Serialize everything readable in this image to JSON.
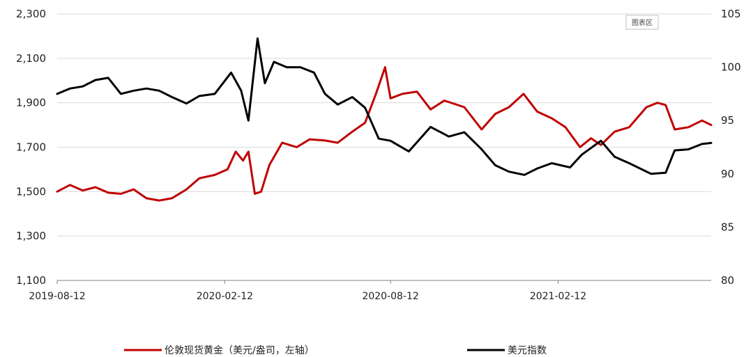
{
  "chart_area_label": "图表区",
  "colors": {
    "gold": "#c00000",
    "dxy": "#000000",
    "grid": "#d9d9d9",
    "axis": "#808080"
  },
  "chart_data": {
    "type": "line",
    "x_ticks": [
      "2019-08-12",
      "2020-02-12",
      "2020-08-12",
      "2021-02-12"
    ],
    "x_range": [
      "2019-08-12",
      "2021-07-30"
    ],
    "left_axis": {
      "ticks": [
        "1,100",
        "1,300",
        "1,500",
        "1,700",
        "1,900",
        "2,100",
        "2,300"
      ],
      "ylim": [
        1100,
        2300
      ]
    },
    "right_axis": {
      "ticks": [
        "80",
        "85",
        "90",
        "95",
        "100",
        "105"
      ],
      "ylim": [
        80,
        105
      ]
    },
    "grid": true,
    "legend_position": "bottom",
    "series": [
      {
        "name": "伦敦现货黄金（美元/盎司，左轴）",
        "axis": "left",
        "points": [
          [
            "2019-08-12",
            1500
          ],
          [
            "2019-08-26",
            1530
          ],
          [
            "2019-09-09",
            1505
          ],
          [
            "2019-09-23",
            1520
          ],
          [
            "2019-10-07",
            1495
          ],
          [
            "2019-10-21",
            1490
          ],
          [
            "2019-11-04",
            1510
          ],
          [
            "2019-11-18",
            1470
          ],
          [
            "2019-12-02",
            1460
          ],
          [
            "2019-12-16",
            1470
          ],
          [
            "2020-01-01",
            1510
          ],
          [
            "2020-01-15",
            1560
          ],
          [
            "2020-02-01",
            1575
          ],
          [
            "2020-02-15",
            1600
          ],
          [
            "2020-02-24",
            1680
          ],
          [
            "2020-03-03",
            1640
          ],
          [
            "2020-03-09",
            1680
          ],
          [
            "2020-03-16",
            1490
          ],
          [
            "2020-03-23",
            1500
          ],
          [
            "2020-04-01",
            1620
          ],
          [
            "2020-04-15",
            1720
          ],
          [
            "2020-05-01",
            1700
          ],
          [
            "2020-05-15",
            1735
          ],
          [
            "2020-06-01",
            1730
          ],
          [
            "2020-06-15",
            1720
          ],
          [
            "2020-07-01",
            1770
          ],
          [
            "2020-07-15",
            1810
          ],
          [
            "2020-07-27",
            1940
          ],
          [
            "2020-08-06",
            2060
          ],
          [
            "2020-08-12",
            1920
          ],
          [
            "2020-08-25",
            1940
          ],
          [
            "2020-09-10",
            1950
          ],
          [
            "2020-09-25",
            1870
          ],
          [
            "2020-10-10",
            1910
          ],
          [
            "2020-11-01",
            1880
          ],
          [
            "2020-11-20",
            1780
          ],
          [
            "2020-12-05",
            1850
          ],
          [
            "2020-12-20",
            1880
          ],
          [
            "2021-01-05",
            1940
          ],
          [
            "2021-01-20",
            1860
          ],
          [
            "2021-02-05",
            1830
          ],
          [
            "2021-02-20",
            1790
          ],
          [
            "2021-03-08",
            1700
          ],
          [
            "2021-03-20",
            1740
          ],
          [
            "2021-03-31",
            1710
          ],
          [
            "2021-04-15",
            1770
          ],
          [
            "2021-05-01",
            1790
          ],
          [
            "2021-05-20",
            1880
          ],
          [
            "2021-06-01",
            1900
          ],
          [
            "2021-06-10",
            1890
          ],
          [
            "2021-06-20",
            1780
          ],
          [
            "2021-07-05",
            1790
          ],
          [
            "2021-07-20",
            1820
          ],
          [
            "2021-07-30",
            1800
          ]
        ]
      },
      {
        "name": "美元指数",
        "axis": "right",
        "points": [
          [
            "2019-08-12",
            97.5
          ],
          [
            "2019-08-26",
            98.0
          ],
          [
            "2019-09-09",
            98.2
          ],
          [
            "2019-09-23",
            98.8
          ],
          [
            "2019-10-07",
            99.0
          ],
          [
            "2019-10-21",
            97.5
          ],
          [
            "2019-11-04",
            97.8
          ],
          [
            "2019-11-18",
            98.0
          ],
          [
            "2019-12-02",
            97.8
          ],
          [
            "2019-12-16",
            97.2
          ],
          [
            "2020-01-01",
            96.6
          ],
          [
            "2020-01-15",
            97.3
          ],
          [
            "2020-02-01",
            97.5
          ],
          [
            "2020-02-19",
            99.5
          ],
          [
            "2020-03-01",
            97.8
          ],
          [
            "2020-03-09",
            95.0
          ],
          [
            "2020-03-19",
            102.7
          ],
          [
            "2020-03-27",
            98.5
          ],
          [
            "2020-04-06",
            100.5
          ],
          [
            "2020-04-20",
            100.0
          ],
          [
            "2020-05-05",
            100.0
          ],
          [
            "2020-05-20",
            99.5
          ],
          [
            "2020-06-01",
            97.5
          ],
          [
            "2020-06-15",
            96.5
          ],
          [
            "2020-07-01",
            97.2
          ],
          [
            "2020-07-15",
            96.2
          ],
          [
            "2020-07-30",
            93.3
          ],
          [
            "2020-08-12",
            93.1
          ],
          [
            "2020-09-01",
            92.1
          ],
          [
            "2020-09-25",
            94.4
          ],
          [
            "2020-10-15",
            93.5
          ],
          [
            "2020-11-01",
            93.9
          ],
          [
            "2020-11-20",
            92.3
          ],
          [
            "2020-12-05",
            90.8
          ],
          [
            "2020-12-20",
            90.2
          ],
          [
            "2021-01-06",
            89.9
          ],
          [
            "2021-01-20",
            90.5
          ],
          [
            "2021-02-05",
            91.0
          ],
          [
            "2021-02-25",
            90.6
          ],
          [
            "2021-03-10",
            91.8
          ],
          [
            "2021-03-31",
            93.1
          ],
          [
            "2021-04-15",
            91.6
          ],
          [
            "2021-05-01",
            91.0
          ],
          [
            "2021-05-25",
            90.0
          ],
          [
            "2021-06-10",
            90.1
          ],
          [
            "2021-06-20",
            92.2
          ],
          [
            "2021-07-05",
            92.3
          ],
          [
            "2021-07-20",
            92.8
          ],
          [
            "2021-07-30",
            92.9
          ]
        ]
      }
    ]
  }
}
